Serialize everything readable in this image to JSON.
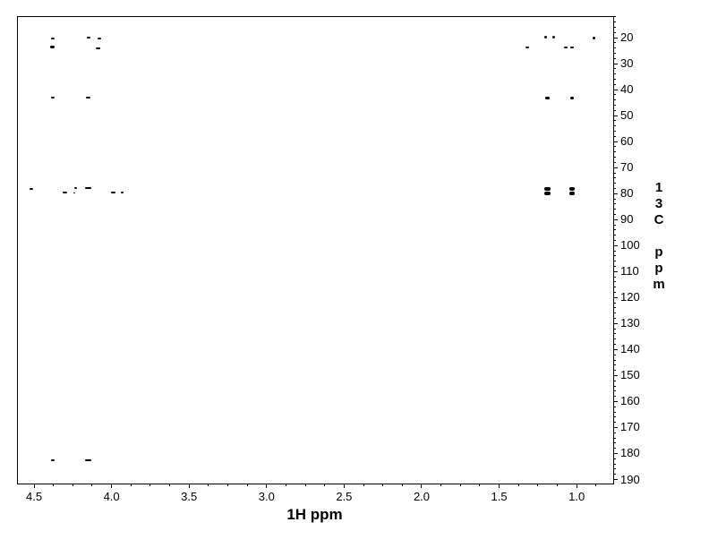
{
  "figure": {
    "background_color": "#ffffff",
    "foreground_color": "#000000"
  },
  "chart_data": {
    "type": "scatter",
    "subtype": "2d-nmr-correlation-spectrum",
    "title": "",
    "xlabel": "1H ppm",
    "ylabel": "13C ppm",
    "ylabel_stacked": [
      "13C",
      "ppm"
    ],
    "grid": false,
    "legend": "none",
    "x_axis": {
      "unit": "ppm",
      "inverted": true,
      "value_at_left_edge": 4.61,
      "value_at_right_edge": 0.77,
      "major_ticks": [
        {
          "v": 4.5,
          "label": "4.5"
        },
        {
          "v": 4.0,
          "label": "4.0"
        },
        {
          "v": 3.5,
          "label": "3.5"
        },
        {
          "v": 3.0,
          "label": "3.0"
        },
        {
          "v": 2.5,
          "label": "2.5"
        },
        {
          "v": 2.0,
          "label": "2.0"
        },
        {
          "v": 1.5,
          "label": "1.5"
        },
        {
          "v": 1.0,
          "label": "1.0"
        }
      ],
      "minor_tick_step": 0.125
    },
    "y_axis": {
      "unit": "ppm",
      "value_at_top_edge": 11.7,
      "value_at_bottom_edge": 191.2,
      "major_ticks": [
        {
          "v": 20,
          "label": "20"
        },
        {
          "v": 30,
          "label": "30"
        },
        {
          "v": 40,
          "label": "40"
        },
        {
          "v": 50,
          "label": "50"
        },
        {
          "v": 60,
          "label": "60"
        },
        {
          "v": 70,
          "label": "70"
        },
        {
          "v": 80,
          "label": "80"
        },
        {
          "v": 90,
          "label": "90"
        },
        {
          "v": 100,
          "label": "100"
        },
        {
          "v": 110,
          "label": "110"
        },
        {
          "v": 120,
          "label": "120"
        },
        {
          "v": 130,
          "label": "130"
        },
        {
          "v": 140,
          "label": "140"
        },
        {
          "v": 150,
          "label": "150"
        },
        {
          "v": 160,
          "label": "160"
        },
        {
          "v": 170,
          "label": "170"
        },
        {
          "v": 180,
          "label": "180"
        },
        {
          "v": 190,
          "label": "190"
        }
      ],
      "minor_tick_step": 2
    },
    "peaks": [
      {
        "h_ppm": 4.38,
        "c_ppm": 20.2,
        "w": 4,
        "h": 2
      },
      {
        "h_ppm": 4.38,
        "c_ppm": 23.7,
        "w": 5,
        "h": 3
      },
      {
        "h_ppm": 4.15,
        "c_ppm": 20.1,
        "w": 4,
        "h": 2
      },
      {
        "h_ppm": 4.08,
        "c_ppm": 20.4,
        "w": 4,
        "h": 2
      },
      {
        "h_ppm": 4.09,
        "c_ppm": 24.1,
        "w": 5,
        "h": 2
      },
      {
        "h_ppm": 1.32,
        "c_ppm": 23.6,
        "w": 4,
        "h": 2
      },
      {
        "h_ppm": 1.2,
        "c_ppm": 19.9,
        "w": 3,
        "h": 3
      },
      {
        "h_ppm": 1.15,
        "c_ppm": 19.9,
        "w": 3,
        "h": 3
      },
      {
        "h_ppm": 1.07,
        "c_ppm": 23.6,
        "w": 4,
        "h": 2
      },
      {
        "h_ppm": 1.03,
        "c_ppm": 23.6,
        "w": 4,
        "h": 2
      },
      {
        "h_ppm": 0.89,
        "c_ppm": 20.3,
        "w": 3,
        "h": 3
      },
      {
        "h_ppm": 4.38,
        "c_ppm": 43.1,
        "w": 4,
        "h": 2
      },
      {
        "h_ppm": 4.15,
        "c_ppm": 43.1,
        "w": 5,
        "h": 2
      },
      {
        "h_ppm": 1.19,
        "c_ppm": 43.1,
        "w": 5,
        "h": 3
      },
      {
        "h_ppm": 1.03,
        "c_ppm": 43.1,
        "w": 4,
        "h": 3
      },
      {
        "h_ppm": 4.52,
        "c_ppm": 78.1,
        "w": 4,
        "h": 2
      },
      {
        "h_ppm": 4.3,
        "c_ppm": 79.7,
        "w": 5,
        "h": 2
      },
      {
        "h_ppm": 4.23,
        "c_ppm": 77.9,
        "w": 3,
        "h": 2
      },
      {
        "h_ppm": 4.24,
        "c_ppm": 79.7,
        "w": 2,
        "h": 1
      },
      {
        "h_ppm": 4.15,
        "c_ppm": 78.0,
        "w": 7,
        "h": 2
      },
      {
        "h_ppm": 3.99,
        "c_ppm": 79.5,
        "w": 5,
        "h": 2
      },
      {
        "h_ppm": 3.93,
        "c_ppm": 79.7,
        "w": 3,
        "h": 2
      },
      {
        "h_ppm": 1.19,
        "c_ppm": 78.1,
        "w": 7,
        "h": 4
      },
      {
        "h_ppm": 1.19,
        "c_ppm": 79.8,
        "w": 7,
        "h": 4
      },
      {
        "h_ppm": 1.03,
        "c_ppm": 78.1,
        "w": 6,
        "h": 4
      },
      {
        "h_ppm": 1.03,
        "c_ppm": 79.8,
        "w": 6,
        "h": 4
      },
      {
        "h_ppm": 4.38,
        "c_ppm": 182.7,
        "w": 4,
        "h": 2
      },
      {
        "h_ppm": 4.15,
        "c_ppm": 182.7,
        "w": 7,
        "h": 2
      }
    ]
  }
}
